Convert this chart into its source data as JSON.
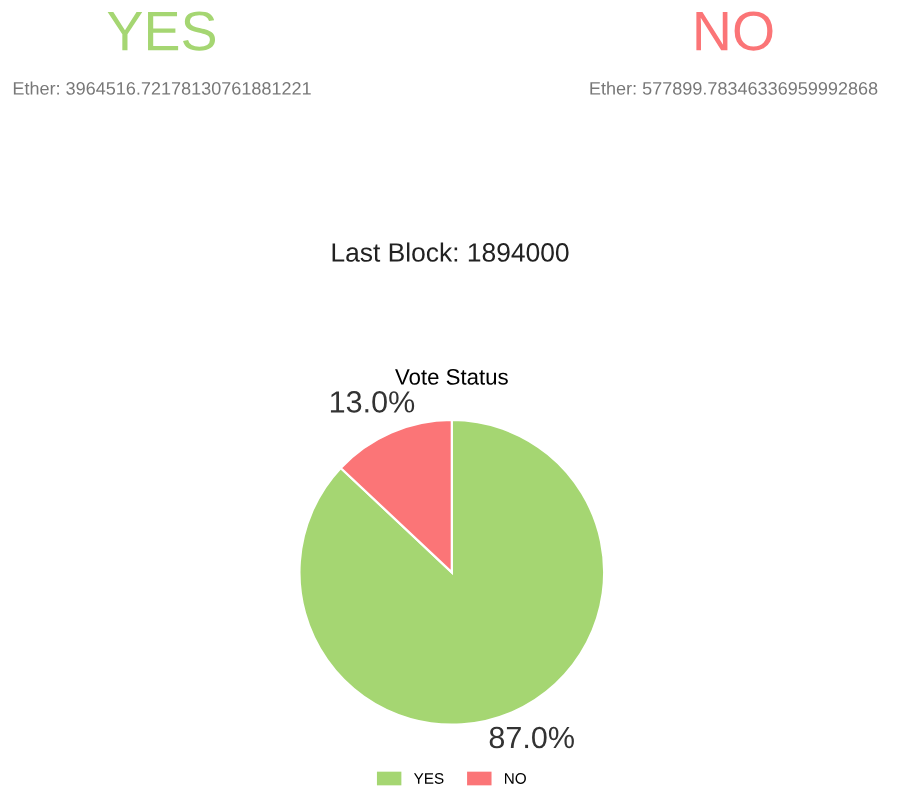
{
  "chart_data": {
    "type": "pie",
    "title": "Vote Status",
    "categories": [
      "YES",
      "NO"
    ],
    "values": [
      87.0,
      13.0
    ],
    "colors": [
      "#a5d672",
      "#fb7577"
    ],
    "value_labels": [
      "87.0%",
      "13.0%"
    ],
    "legend": "bottom",
    "annotations": [
      "YES",
      "Ether: 3964516.72178130761881221",
      "NO",
      "Ether: 577899.78346336959992868",
      "Last Block: 1894000"
    ]
  }
}
